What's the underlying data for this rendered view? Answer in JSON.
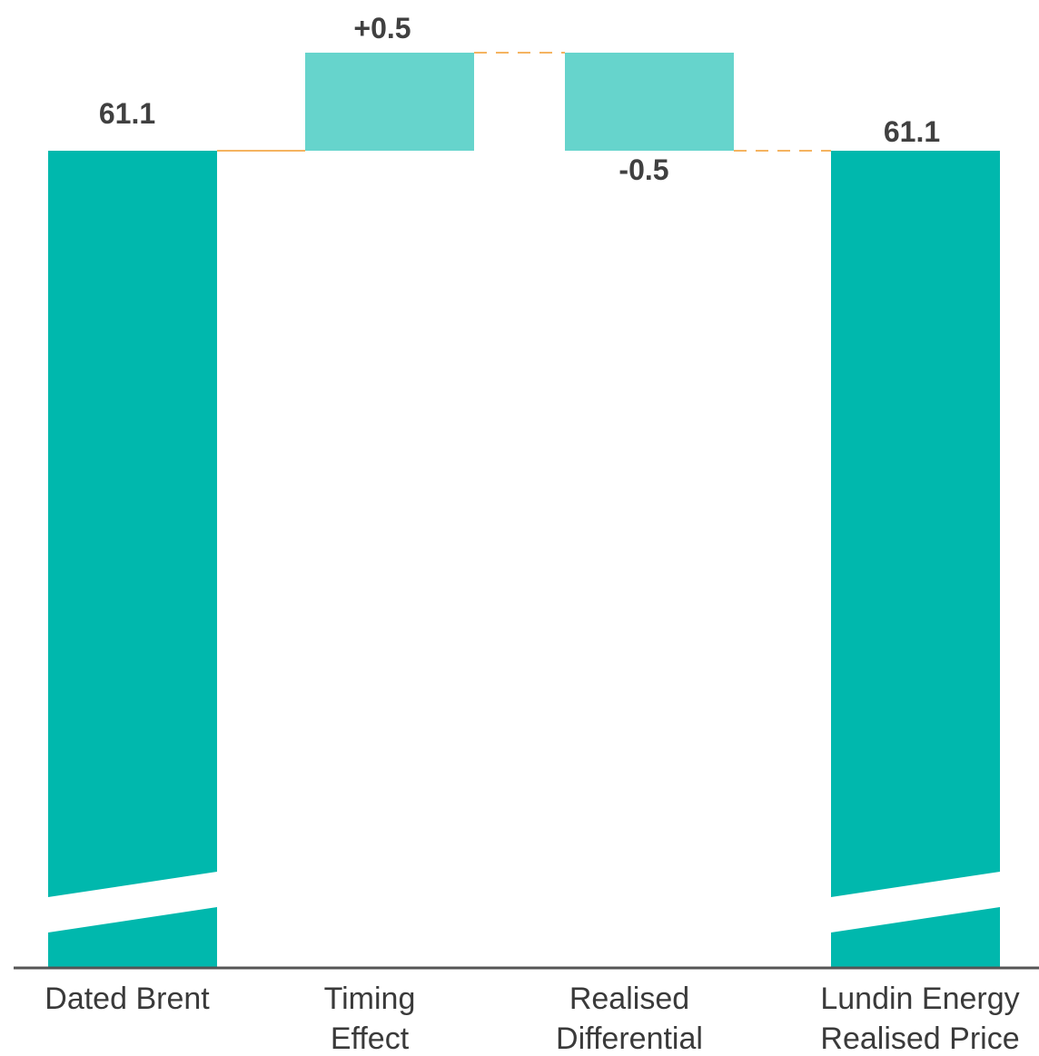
{
  "chart_data": {
    "type": "bar",
    "subtype": "waterfall",
    "categories": [
      [
        "Dated Brent"
      ],
      [
        "Timing",
        "Effect"
      ],
      [
        "Realised",
        "Differential"
      ],
      [
        "Lundin Energy",
        "Realised Price"
      ]
    ],
    "values": [
      61.1,
      0.5,
      -0.5,
      61.1
    ],
    "value_labels": [
      "61.1",
      "+0.5",
      "-0.5",
      "61.1"
    ],
    "bar_kinds": [
      "total",
      "delta",
      "delta",
      "total"
    ],
    "axis_break": true,
    "connectors": "dashed",
    "colors": {
      "total": "#00B8AD",
      "delta": "#66D4CC",
      "connector": "#F5B461",
      "axis": "#555555",
      "break_gap": "#FFFFFF"
    },
    "grid": false,
    "legend": "none"
  }
}
